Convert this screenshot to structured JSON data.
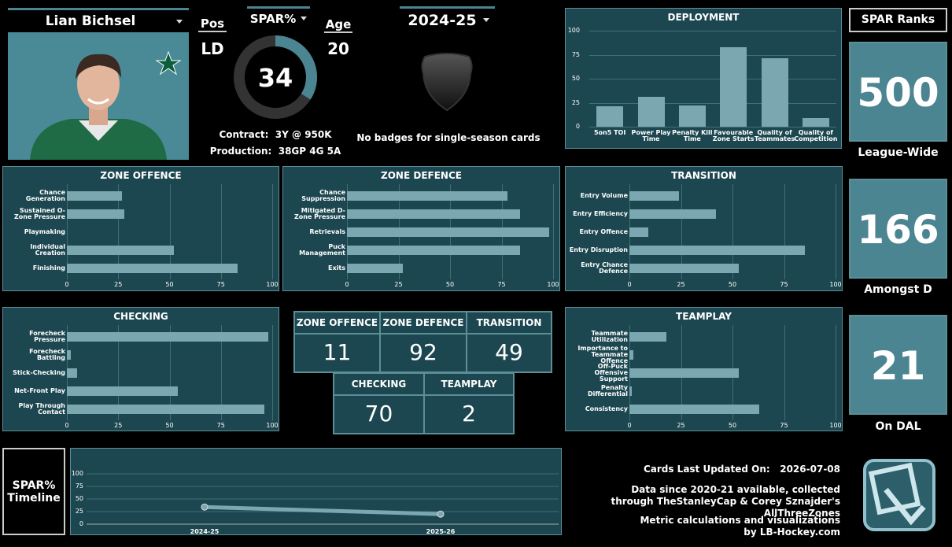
{
  "player": {
    "name": "Lian Bichsel",
    "pos_label": "Pos",
    "pos": "LD",
    "spar_label": "SPAR%",
    "spar": 34,
    "age_label": "Age",
    "age": 20,
    "contract_label": "Contract:",
    "contract": "3Y @ 950K",
    "production_label": "Production:",
    "production": "38GP 4G 5A"
  },
  "season": "2024-25",
  "badges_note": "No badges for single-season cards",
  "chart_data": [
    {
      "type": "bar",
      "orientation": "vertical",
      "title": "DEPLOYMENT",
      "categories": [
        "5on5 TOI",
        "Power Play Time",
        "Penalty Kill Time",
        "Favourable Zone Starts",
        "Quality of Teammates",
        "Quality of Competition"
      ],
      "values": [
        21,
        31,
        22,
        83,
        71,
        9
      ],
      "color": "#7ba7b1",
      "ylim": [
        0,
        100
      ],
      "yticks": [
        0,
        25,
        50,
        75,
        100
      ],
      "grid": true
    },
    {
      "type": "bar",
      "orientation": "horizontal",
      "title": "ZONE OFFENCE",
      "categories": [
        "Chance Generation",
        "Sustained O-Zone Pressure",
        "Playmaking",
        "Individual Creation",
        "Finishing"
      ],
      "values": [
        27,
        28,
        0,
        52,
        83
      ],
      "color": "#7ba7b1",
      "xlim": [
        0,
        100
      ],
      "xticks": [
        0,
        25,
        50,
        75,
        100
      ],
      "grid": true
    },
    {
      "type": "bar",
      "orientation": "horizontal",
      "title": "ZONE DEFENCE",
      "categories": [
        "Chance Suppression",
        "Mitigated D-Zone Pressure",
        "Retrievals",
        "Puck Management",
        "Exits"
      ],
      "values": [
        78,
        84,
        98,
        84,
        27
      ],
      "color": "#7ba7b1",
      "xlim": [
        0,
        100
      ],
      "xticks": [
        0,
        25,
        50,
        75,
        100
      ],
      "grid": true
    },
    {
      "type": "bar",
      "orientation": "horizontal",
      "title": "TRANSITION",
      "categories": [
        "Entry Volume",
        "Entry Efficiency",
        "Entry Offence",
        "Entry Disruption",
        "Entry Chance Defence"
      ],
      "values": [
        24,
        42,
        9,
        85,
        53
      ],
      "color": "#7ba7b1",
      "xlim": [
        0,
        100
      ],
      "xticks": [
        0,
        25,
        50,
        75,
        100
      ],
      "grid": true
    },
    {
      "type": "bar",
      "orientation": "horizontal",
      "title": "CHECKING",
      "categories": [
        "Forecheck Pressure",
        "Forecheck Battling",
        "Stick-Checking",
        "Net-Front Play",
        "Play Through Contact"
      ],
      "values": [
        98,
        2,
        5,
        54,
        96
      ],
      "color": "#7ba7b1",
      "xlim": [
        0,
        100
      ],
      "xticks": [
        0,
        25,
        50,
        75,
        100
      ],
      "grid": true
    },
    {
      "type": "bar",
      "orientation": "horizontal",
      "title": "TEAMPLAY",
      "categories": [
        "Teammate Utilization",
        "Importance to Teammate Offence",
        "Off-Puck Offensive Support",
        "Penalty Differential",
        "Consistency"
      ],
      "values": [
        18,
        2,
        53,
        1,
        63
      ],
      "color": "#7ba7b1",
      "xlim": [
        0,
        100
      ],
      "xticks": [
        0,
        25,
        50,
        75,
        100
      ],
      "grid": true
    },
    {
      "type": "line",
      "title": "SPAR% Timeline",
      "categories": [
        "2024-25",
        "2025-26"
      ],
      "values": [
        34,
        20
      ],
      "color": "#7ba7b1",
      "ylim": [
        0,
        100
      ],
      "yticks": [
        0,
        25,
        50,
        75,
        100
      ],
      "grid": true
    }
  ],
  "summary": {
    "headers": [
      "ZONE OFFENCE",
      "ZONE DEFENCE",
      "TRANSITION",
      "CHECKING",
      "TEAMPLAY"
    ],
    "values": [
      11,
      92,
      49,
      70,
      2
    ]
  },
  "ranks": {
    "title": "SPAR Ranks",
    "items": [
      {
        "value": 500,
        "label": "League-Wide"
      },
      {
        "value": 166,
        "label": "Amongst D"
      },
      {
        "value": 21,
        "label": "On DAL"
      }
    ]
  },
  "footer": {
    "updated_label": "Cards Last Updated On:",
    "updated": "2026-07-08",
    "data_note": "Data since 2020-21 available, collected through TheStanleyCap & Corey Sznajder's AllThreeZones",
    "credit": "Metric calculations and visualizations by LB-Hockey.com"
  }
}
